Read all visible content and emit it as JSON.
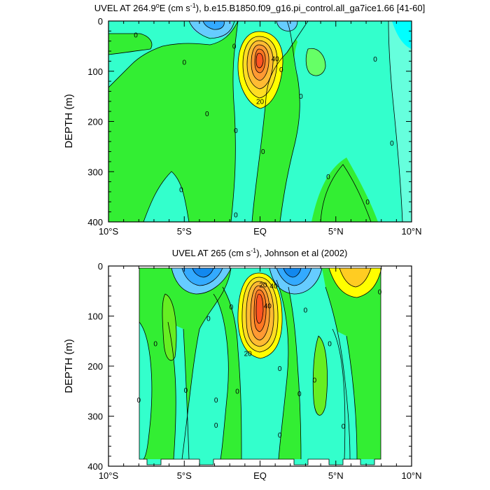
{
  "chart_data": [
    {
      "type": "contour",
      "title_parts": [
        "UVEL AT 264.9",
        "o",
        "E (cm s",
        "-1",
        "), b.e15.B1850.f09_g16.pi_control.all_ga7ice1.66 [41-60]"
      ],
      "ylabel": "DEPTH (m)",
      "x_ticks": [
        "10°S",
        "5°S",
        "EQ",
        "5°N",
        "10°N"
      ],
      "y_ticks": [
        "0",
        "100",
        "200",
        "300",
        "400"
      ],
      "x_range_lat": [
        -10,
        10
      ],
      "y_range_depth": [
        0,
        400
      ],
      "contour_interval": 5,
      "contour_labels": [
        {
          "text": "0",
          "lat": -8.2,
          "depth": 28
        },
        {
          "text": "0",
          "lat": -5.0,
          "depth": 82
        },
        {
          "text": "0",
          "lat": -3.5,
          "depth": 185
        },
        {
          "text": "0",
          "lat": -1.7,
          "depth": 50
        },
        {
          "text": "0",
          "lat": -1.6,
          "depth": 218
        },
        {
          "text": "0",
          "lat": -5.2,
          "depth": 336
        },
        {
          "text": "0",
          "lat": -1.6,
          "depth": 386
        },
        {
          "text": "0",
          "lat": 1.4,
          "depth": 97
        },
        {
          "text": "0",
          "lat": 0.2,
          "depth": 260
        },
        {
          "text": "0",
          "lat": 2.7,
          "depth": 150
        },
        {
          "text": "0",
          "lat": 4.5,
          "depth": 310
        },
        {
          "text": "0",
          "lat": 7.6,
          "depth": 76
        },
        {
          "text": "0",
          "lat": 8.7,
          "depth": 243
        },
        {
          "text": "0",
          "lat": 7.1,
          "depth": 360
        },
        {
          "text": "40",
          "lat": 1.0,
          "depth": 75
        },
        {
          "text": "20",
          "lat": 0.0,
          "depth": 160
        }
      ]
    },
    {
      "type": "contour",
      "title_parts": [
        "UVEL AT 265 (cm s",
        "-1",
        "), Johnson et al (2002)"
      ],
      "ylabel": "DEPTH (m)",
      "x_ticks": [
        "10°S",
        "5°S",
        "EQ",
        "5°N",
        "10°N"
      ],
      "y_ticks": [
        "0",
        "100",
        "200",
        "300",
        "400"
      ],
      "x_range_lat": [
        -10,
        10
      ],
      "y_range_depth": [
        0,
        400
      ],
      "data_lat_range": [
        -8,
        8
      ],
      "contour_interval": 5,
      "contour_labels": [
        {
          "text": "0",
          "lat": -8.0,
          "depth": 268
        },
        {
          "text": "0",
          "lat": -6.9,
          "depth": 155
        },
        {
          "text": "0",
          "lat": -4.9,
          "depth": 248
        },
        {
          "text": "0",
          "lat": -3.4,
          "depth": 105
        },
        {
          "text": "0",
          "lat": -2.9,
          "depth": 268
        },
        {
          "text": "0",
          "lat": -2.9,
          "depth": 318
        },
        {
          "text": "0",
          "lat": -1.9,
          "depth": 82
        },
        {
          "text": "0",
          "lat": -1.5,
          "depth": 250
        },
        {
          "text": "0",
          "lat": 1.3,
          "depth": 205
        },
        {
          "text": "0",
          "lat": 1.3,
          "depth": 338
        },
        {
          "text": "0",
          "lat": 3.0,
          "depth": 88
        },
        {
          "text": "0",
          "lat": 2.6,
          "depth": 255
        },
        {
          "text": "0",
          "lat": 3.6,
          "depth": 228
        },
        {
          "text": "0",
          "lat": 4.6,
          "depth": 155
        },
        {
          "text": "0",
          "lat": 5.5,
          "depth": 320
        },
        {
          "text": "0",
          "lat": 7.9,
          "depth": 52
        },
        {
          "text": "20",
          "lat": 0.2,
          "depth": 38
        },
        {
          "text": "40",
          "lat": 0.9,
          "depth": 40
        },
        {
          "text": "40",
          "lat": 0.5,
          "depth": 80
        },
        {
          "text": "20",
          "lat": -0.8,
          "depth": 175
        }
      ]
    }
  ],
  "colors": {
    "cyan": "#00ffff",
    "light_cyan": "#66ffdd",
    "aqua_green": "#33ffcc",
    "blue": "#33aaff",
    "green": "#33ee33",
    "light_green": "#66ff66",
    "mid_green": "#44dd22",
    "yellow": "#ffff00",
    "gold": "#ffcc22",
    "orange": "#ffaa33",
    "dark_orange": "#ff7722",
    "red_orange": "#ff5522",
    "white": "#ffffff"
  }
}
